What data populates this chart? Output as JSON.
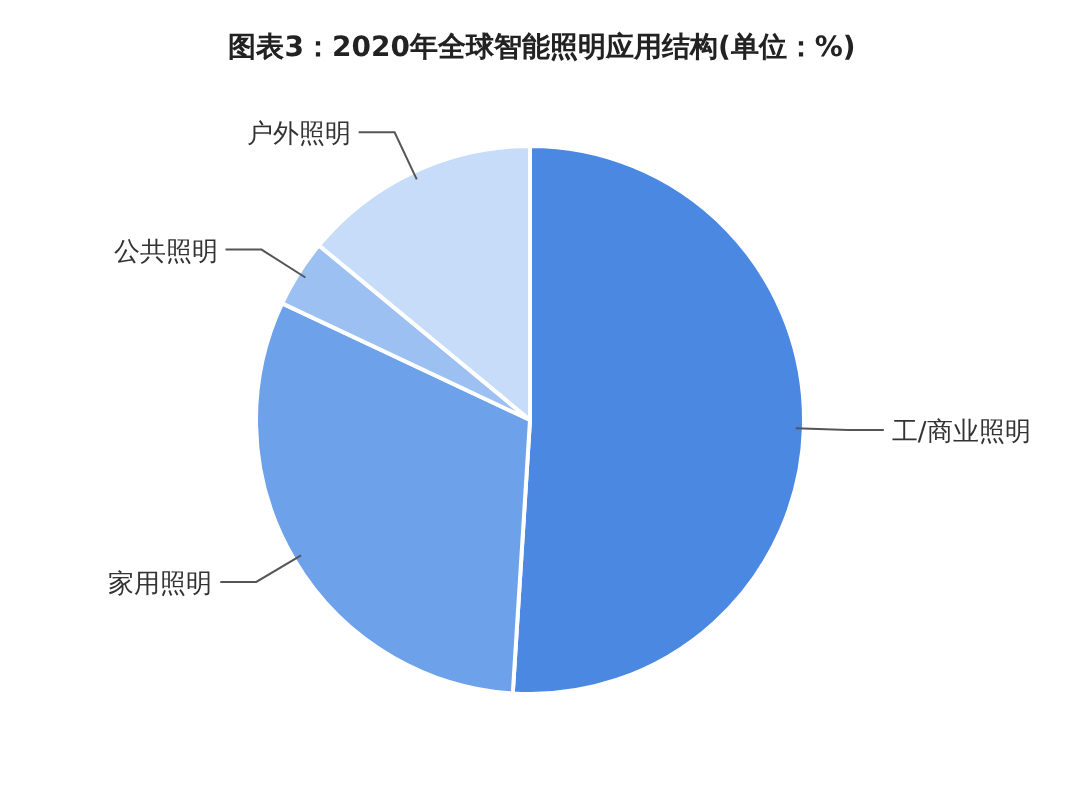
{
  "chart_data": {
    "type": "pie",
    "title": "图表3：2020年全球智能照明应用结构(单位：%)",
    "categories": [
      "工/商业照明",
      "家用照明",
      "公共照明",
      "户外照明"
    ],
    "values": [
      51,
      31,
      4,
      14
    ],
    "colors": [
      "#4a88e2",
      "#6da2ea",
      "#9cc0f2",
      "#c6dcf9"
    ]
  }
}
